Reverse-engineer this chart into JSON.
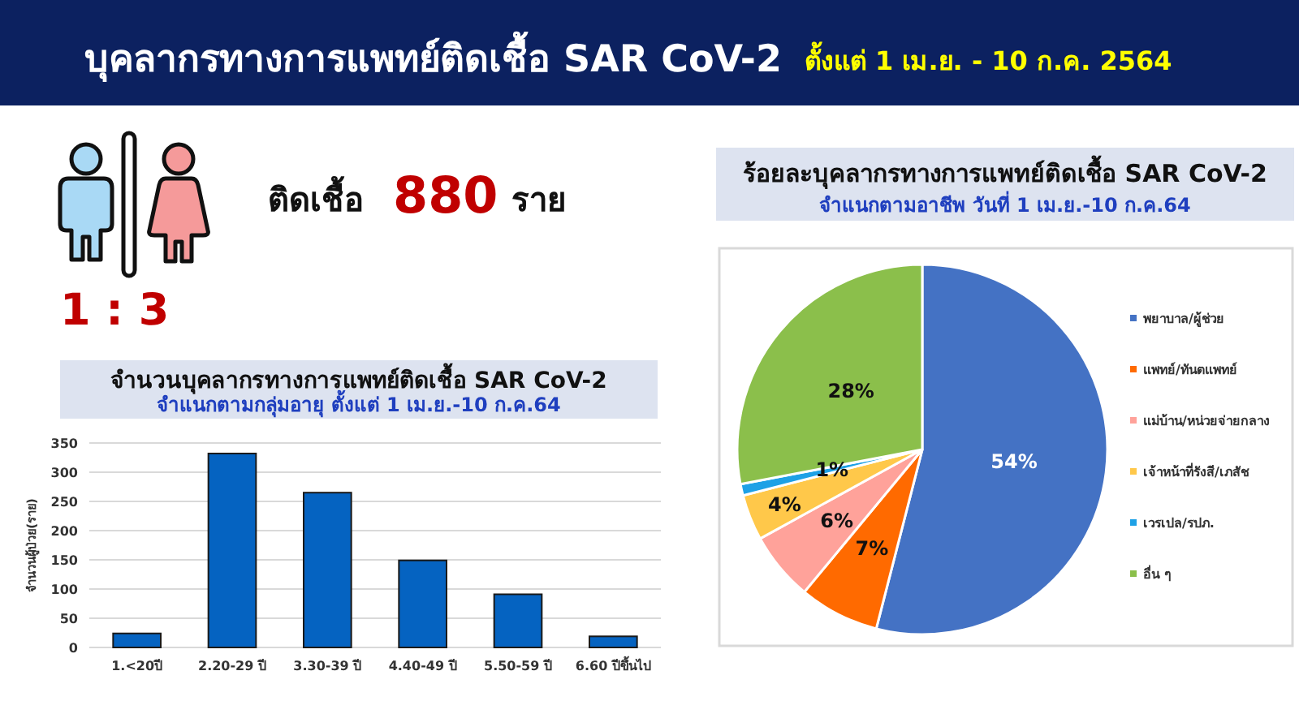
{
  "chart_data": [
    {
      "type": "other",
      "title": "บุคลากรทางการแพทย์ติดเชื้อ SAR CoV-2",
      "subtitle": "ตั้งแต่ 1 เม.ย. - 10 ก.ค. 2564",
      "annotations": [
        "ติดเชื้อ",
        "880",
        "ราย",
        "1 : 3"
      ]
    },
    {
      "type": "bar",
      "title": "จำนวนบุคลากรทางการแพทย์ติดเชื้อ SAR CoV-2",
      "subtitle": "จำแนกตามกลุ่มอายุ ตั้งแต่ 1 เม.ย.-10 ก.ค.64",
      "ylabel": "จำนวนผู้ป่วย(ราย)",
      "categories": [
        "1.<20ปี",
        "2.20-29 ปี",
        "3.30-39 ปี",
        "4.40-49 ปี",
        "5.50-59 ปี",
        "6.60 ปีขึ้นไป"
      ],
      "values": [
        24,
        332,
        265,
        149,
        91,
        19
      ],
      "color": "#0563c1",
      "ylim": [
        0,
        350
      ],
      "yticks": [
        0,
        50,
        100,
        150,
        200,
        250,
        300,
        350
      ],
      "grid": "y"
    },
    {
      "type": "pie",
      "title": "ร้อยละบุคลากรทางการแพทย์ติดเชื้อ SAR CoV-2",
      "subtitle": "จำแนกตามอาชีพ วันที่ 1 เม.ย.-10 ก.ค.64",
      "categories": [
        "พยาบาล/ผู้ช่วย",
        "แพทย์/ทันตแพทย์",
        "แม่บ้าน/หน่วยจ่ายกลาง",
        "เจ้าหน้าที่รังสี/เภสัช",
        "เวรเปล/รปภ.",
        "อื่น ๆ"
      ],
      "values": [
        54,
        7,
        6,
        4,
        1,
        28
      ],
      "colors": [
        "#4472c4",
        "#ff6a00",
        "#ffa29a",
        "#ffc84a",
        "#1ea1e6",
        "#8bbf4b"
      ],
      "value_labels": [
        "54%",
        "7%",
        "6%",
        "4%",
        "1%",
        "28%"
      ],
      "legend": "right"
    }
  ]
}
